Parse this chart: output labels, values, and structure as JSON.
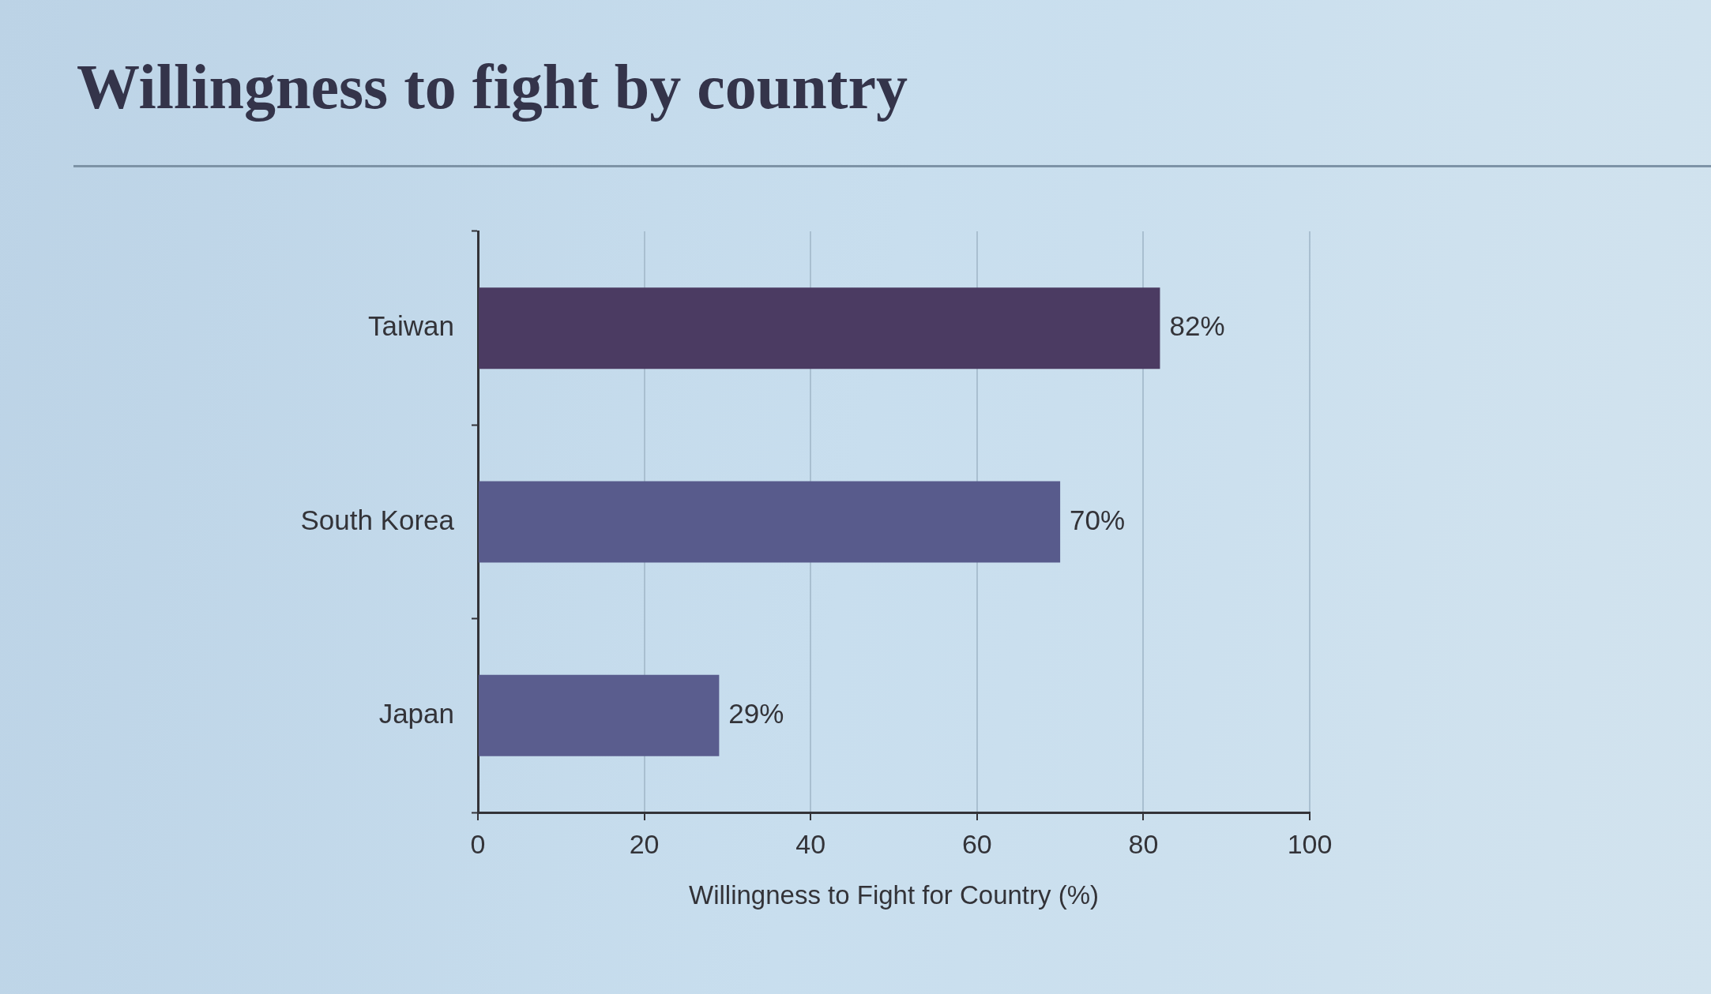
{
  "chart_data": {
    "type": "bar",
    "orientation": "horizontal",
    "title": "Willingness to fight by country",
    "xlabel": "Willingness to Fight for Country (%)",
    "categories": [
      "Taiwan",
      "South Korea",
      "Japan"
    ],
    "values": [
      82,
      70,
      29
    ],
    "colors": [
      "#4b3b62",
      "#585b8c",
      "#5a5d8e"
    ],
    "value_labels": [
      "82%",
      "70%",
      "29%"
    ],
    "xlim": [
      0,
      100
    ],
    "xticks": [
      0,
      20,
      40,
      60,
      80,
      100
    ],
    "grid": "x",
    "legend": false
  }
}
